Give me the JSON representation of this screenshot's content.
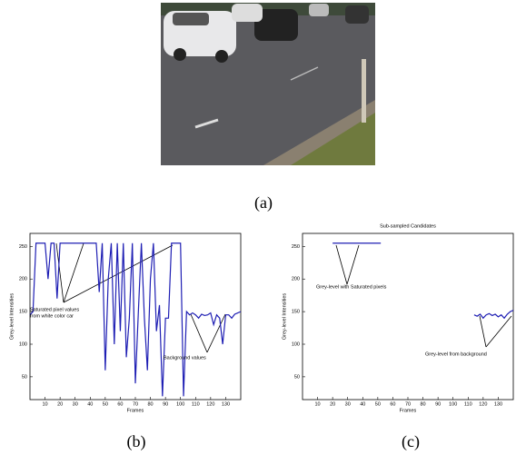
{
  "figure": {
    "captions": [
      "(a)",
      "(b)",
      "(c)"
    ]
  },
  "chart_data": [
    {
      "type": "line",
      "ylabel": "Grey-level Intensities",
      "xlabel": "Frames",
      "xlim": [
        0,
        140
      ],
      "xticks": [
        10,
        20,
        30,
        40,
        50,
        60,
        70,
        80,
        90,
        100,
        110,
        120,
        130
      ],
      "ylim": [
        15,
        270
      ],
      "yticks": [
        50,
        100,
        150,
        200,
        250
      ],
      "series": [
        {
          "color": "#1f1fb4",
          "x": [
            0,
            2,
            4,
            6,
            8,
            10,
            12,
            14,
            16,
            18,
            20,
            22,
            24,
            26,
            28,
            30,
            32,
            34,
            36,
            38,
            40,
            42,
            44,
            46,
            48,
            50,
            52,
            54,
            56,
            58,
            60,
            62,
            64,
            66,
            68,
            70,
            72,
            74,
            76,
            78,
            80,
            82,
            84,
            86,
            88,
            90,
            92,
            94,
            96,
            98,
            100,
            102,
            104,
            106,
            108,
            110,
            112,
            114,
            116,
            118,
            120,
            122,
            124,
            126,
            128,
            130,
            132,
            134,
            136,
            138,
            140
          ],
          "values": [
            145,
            150,
            255,
            255,
            255,
            255,
            200,
            255,
            255,
            170,
            255,
            255,
            255,
            255,
            255,
            255,
            255,
            255,
            255,
            255,
            255,
            255,
            255,
            180,
            255,
            60,
            200,
            255,
            100,
            255,
            120,
            255,
            80,
            140,
            255,
            40,
            150,
            255,
            140,
            60,
            200,
            255,
            120,
            160,
            20,
            140,
            140,
            255,
            255,
            255,
            255,
            20,
            150,
            145,
            148,
            145,
            140,
            146,
            144,
            145,
            148,
            130,
            145,
            140,
            100,
            145,
            145,
            140,
            146,
            148,
            150
          ]
        }
      ],
      "annotations": [
        {
          "lines": [
            "Saturated pixel values",
            "from white color car"
          ]
        },
        {
          "lines": [
            "Background values"
          ]
        }
      ]
    },
    {
      "type": "line",
      "title": "Sub-sampled Candidates",
      "ylabel": "Grey-level Intensities",
      "xlabel": "Frames",
      "xlim": [
        0,
        140
      ],
      "xticks": [
        10,
        20,
        30,
        40,
        50,
        60,
        70,
        80,
        90,
        100,
        110,
        120,
        130
      ],
      "ylim": [
        15,
        270
      ],
      "yticks": [
        50,
        100,
        150,
        200,
        250
      ],
      "series": [
        {
          "color": "#1f1fb4",
          "x": [
            20,
            24,
            28,
            32,
            36,
            40,
            44,
            48,
            52,
            80,
            114,
            116,
            118,
            120,
            122,
            124,
            126,
            128,
            130,
            132,
            134,
            136,
            138,
            140
          ],
          "values": [
            255,
            255,
            255,
            255,
            255,
            255,
            255,
            255,
            255,
            null,
            145,
            143,
            146,
            140,
            145,
            147,
            144,
            146,
            142,
            145,
            140,
            146,
            150,
            152
          ]
        }
      ],
      "annotations": [
        {
          "lines": [
            "Grey-level with Saturated pixels"
          ]
        },
        {
          "lines": [
            "Grey-level from background"
          ]
        }
      ]
    }
  ]
}
